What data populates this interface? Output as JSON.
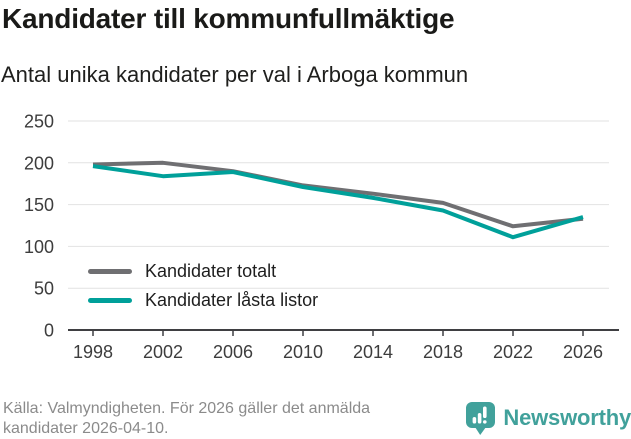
{
  "chart_data": {
    "type": "line",
    "title": "Kandidater till kommunfullmäktige",
    "subtitle": "Antal unika kandidater per val i Arboga kommun",
    "categories": [
      "1998",
      "2002",
      "2006",
      "2010",
      "2014",
      "2018",
      "2022",
      "2026"
    ],
    "series": [
      {
        "name": "Kandidater totalt",
        "color": "#6f6f72",
        "values": [
          198,
          200,
          190,
          173,
          163,
          152,
          124,
          133
        ]
      },
      {
        "name": "Kandidater låsta listor",
        "color": "#00a09a",
        "values": [
          196,
          184,
          189,
          171,
          158,
          143,
          111,
          135
        ]
      }
    ],
    "xlabel": "",
    "ylabel": "",
    "ylim": [
      0,
      250
    ],
    "yticks": [
      0,
      50,
      100,
      150,
      200,
      250
    ],
    "grid": "horizontal-only",
    "legend_position": "inside-bottom-left"
  },
  "footer": {
    "source": "Källa: Valmyndigheten. För 2026 gäller det anmälda kandidater 2026-04-10.",
    "brand": "Newsworthy"
  },
  "colors": {
    "accent_teal": "#00a09a",
    "series_gray": "#6f6f72",
    "brand_teal": "#41a19b",
    "grid": "#e2e2e2",
    "axis": "#3f3f42"
  }
}
